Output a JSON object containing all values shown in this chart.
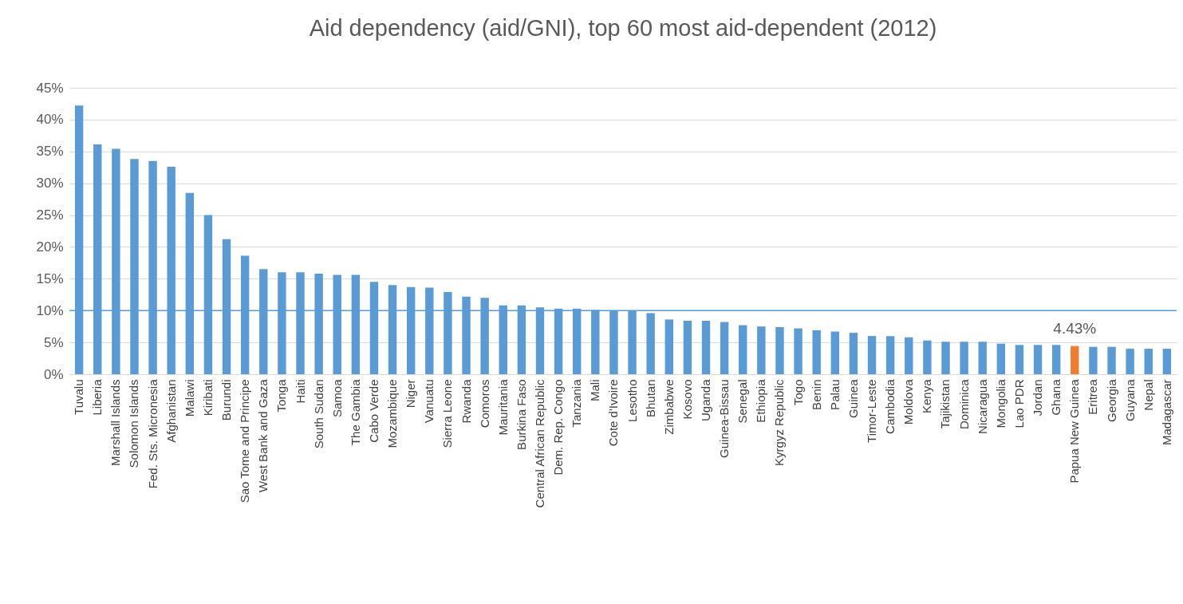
{
  "chart_data": {
    "type": "bar",
    "title": "Aid dependency  (aid/GNI), top 60 most aid-dependent (2012)",
    "categories": [
      "Tuvalu",
      "Liberia",
      "Marshall Islands",
      "Solomon Islands",
      "Fed. Sts. Micronesia",
      "Afghanistan",
      "Malawi",
      "Kiribati",
      "Burundi",
      "Sao Tome and Principe",
      "West Bank and Gaza",
      "Tonga",
      "Haiti",
      "South Sudan",
      "Samoa",
      "The Gambia",
      "Cabo Verde",
      "Mozambique",
      "Niger",
      "Vanuatu",
      "Sierra Leone",
      "Rwanda",
      "Comoros",
      "Mauritania",
      "Burkina Faso",
      "Central African Republic",
      "Dem. Rep. Congo",
      "Tanzania",
      "Mali",
      "Cote d'Ivoire",
      "Lesotho",
      "Bhutan",
      "Zimbabwe",
      "Kosovo",
      "Uganda",
      "Guinea-Bissau",
      "Senegal",
      "Ethiopia",
      "Kyrgyz Republic",
      "Togo",
      "Benin",
      "Palau",
      "Guinea",
      "Timor-Leste",
      "Cambodia",
      "Moldova",
      "Kenya",
      "Tajikistan",
      "Dominica",
      "Nicaragua",
      "Mongolia",
      "Lao PDR",
      "Jordan",
      "Ghana",
      "Papua New Guinea",
      "Eritrea",
      "Georgia",
      "Guyana",
      "Nepal",
      "Madagascar"
    ],
    "values": [
      42.2,
      36.1,
      35.4,
      33.8,
      33.5,
      32.6,
      28.5,
      25.0,
      21.2,
      18.6,
      16.5,
      16.0,
      16.0,
      15.8,
      15.6,
      15.6,
      14.5,
      14.0,
      13.7,
      13.6,
      12.9,
      12.2,
      12.0,
      10.8,
      10.8,
      10.5,
      10.3,
      10.3,
      10.1,
      9.9,
      9.9,
      9.6,
      8.6,
      8.4,
      8.4,
      8.2,
      7.7,
      7.5,
      7.4,
      7.2,
      6.9,
      6.7,
      6.5,
      6.0,
      6.0,
      5.8,
      5.3,
      5.1,
      5.1,
      5.1,
      4.8,
      4.6,
      4.6,
      4.6,
      4.43,
      4.3,
      4.3,
      4.0,
      4.0,
      4.0
    ],
    "colors": [
      "#5b9bd5",
      "#5b9bd5",
      "#5b9bd5",
      "#5b9bd5",
      "#5b9bd5",
      "#5b9bd5",
      "#5b9bd5",
      "#5b9bd5",
      "#5b9bd5",
      "#5b9bd5",
      "#5b9bd5",
      "#5b9bd5",
      "#5b9bd5",
      "#5b9bd5",
      "#5b9bd5",
      "#5b9bd5",
      "#5b9bd5",
      "#5b9bd5",
      "#5b9bd5",
      "#5b9bd5",
      "#5b9bd5",
      "#5b9bd5",
      "#5b9bd5",
      "#5b9bd5",
      "#5b9bd5",
      "#5b9bd5",
      "#5b9bd5",
      "#5b9bd5",
      "#5b9bd5",
      "#5b9bd5",
      "#5b9bd5",
      "#5b9bd5",
      "#5b9bd5",
      "#5b9bd5",
      "#5b9bd5",
      "#5b9bd5",
      "#5b9bd5",
      "#5b9bd5",
      "#5b9bd5",
      "#5b9bd5",
      "#5b9bd5",
      "#5b9bd5",
      "#5b9bd5",
      "#5b9bd5",
      "#5b9bd5",
      "#5b9bd5",
      "#5b9bd5",
      "#5b9bd5",
      "#5b9bd5",
      "#5b9bd5",
      "#5b9bd5",
      "#5b9bd5",
      "#5b9bd5",
      "#5b9bd5",
      "#ed7d31",
      "#5b9bd5",
      "#5b9bd5",
      "#5b9bd5",
      "#5b9bd5",
      "#5b9bd5"
    ],
    "value_labels": [
      null,
      null,
      null,
      null,
      null,
      null,
      null,
      null,
      null,
      null,
      null,
      null,
      null,
      null,
      null,
      null,
      null,
      null,
      null,
      null,
      null,
      null,
      null,
      null,
      null,
      null,
      null,
      null,
      null,
      null,
      null,
      null,
      null,
      null,
      null,
      null,
      null,
      null,
      null,
      null,
      null,
      null,
      null,
      null,
      null,
      null,
      null,
      null,
      null,
      null,
      null,
      null,
      null,
      null,
      "4.43%",
      null,
      null,
      null,
      null,
      null
    ],
    "ylim": [
      0,
      45
    ],
    "yticks": [
      {
        "value": 0,
        "label": "0%"
      },
      {
        "value": 5,
        "label": "5%"
      },
      {
        "value": 10,
        "label": "10%"
      },
      {
        "value": 15,
        "label": "15%"
      },
      {
        "value": 20,
        "label": "20%"
      },
      {
        "value": 25,
        "label": "25%"
      },
      {
        "value": 30,
        "label": "30%"
      },
      {
        "value": 35,
        "label": "35%"
      },
      {
        "value": 40,
        "label": "40%"
      },
      {
        "value": 45,
        "label": "45%"
      }
    ],
    "grid": "y",
    "ref_lines": [
      {
        "axis": "y",
        "value": 10,
        "color": "#5b9bd5"
      }
    ]
  }
}
